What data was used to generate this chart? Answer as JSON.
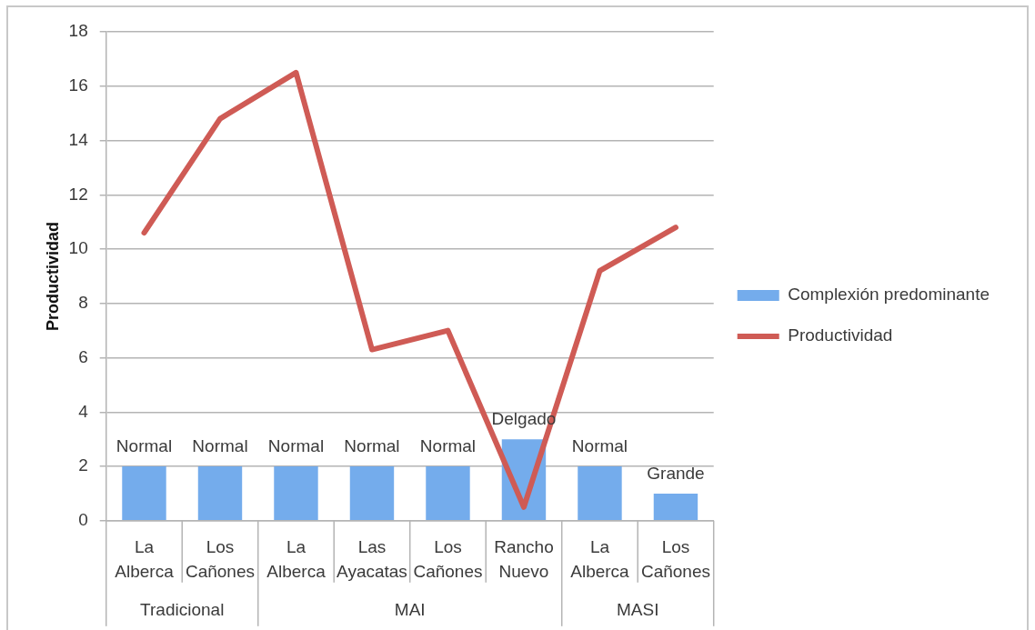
{
  "chart_data": {
    "type": "bar",
    "ylabel": "Productividad",
    "categories": [
      "La Alberca",
      "Los Cañones",
      "La Alberca",
      "Las Ayacatas",
      "Los Cañones",
      "Rancho Nuevo",
      "La Alberca",
      "Los Cañones"
    ],
    "series": [
      {
        "name": "Complexión predominante",
        "color": "#74acec",
        "values": [
          2,
          2,
          2,
          2,
          2,
          3,
          2,
          1
        ],
        "value_labels": [
          "Normal",
          "Normal",
          "Normal",
          "Normal",
          "Normal",
          "Delgado",
          "Normal",
          "Grande"
        ]
      },
      {
        "name": "Productividad",
        "type": "line",
        "color": "#cf5b55",
        "values": [
          10.6,
          14.8,
          16.5,
          6.3,
          7.0,
          0.5,
          9.2,
          10.8
        ]
      }
    ],
    "ylim": [
      0,
      18
    ],
    "yticks": [
      0,
      2,
      4,
      6,
      8,
      10,
      12,
      14,
      16,
      18
    ],
    "grid": "y",
    "legend": "right",
    "annotations": [
      "Tradicional",
      "MAI",
      "MASI"
    ]
  }
}
